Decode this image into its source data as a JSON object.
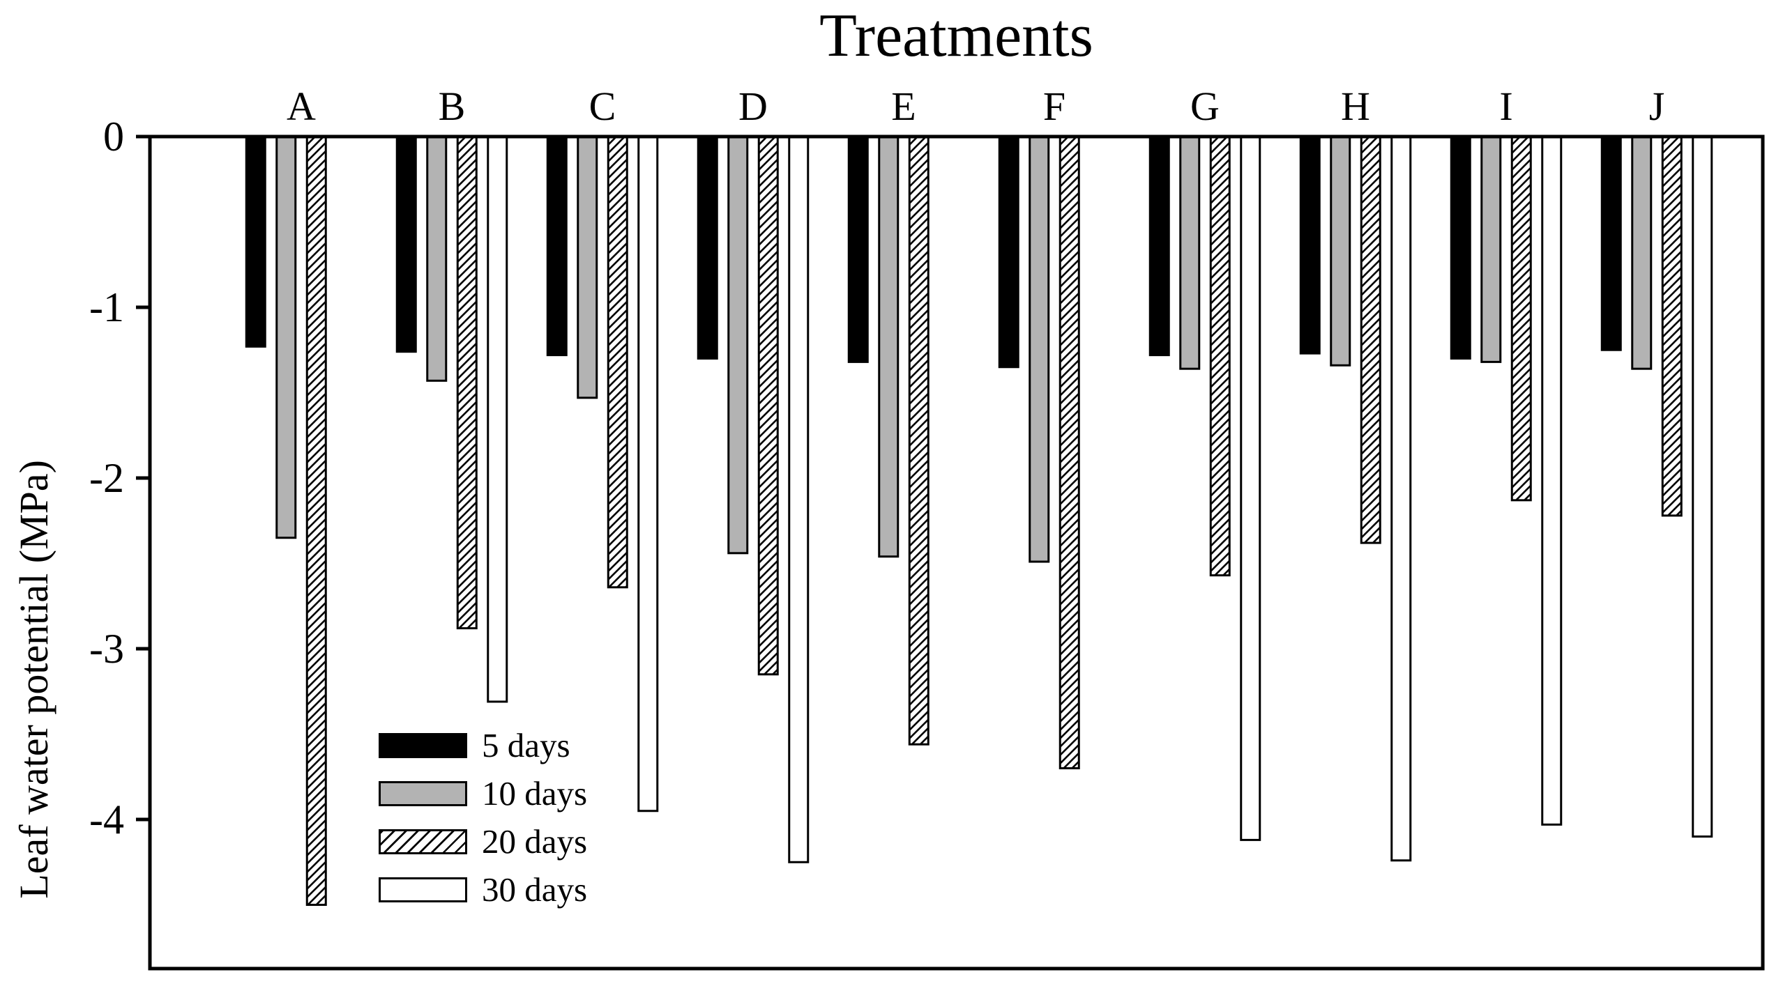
{
  "figure": {
    "background_color": "#ffffff",
    "ink_color": "#000000",
    "title": "Treatments",
    "y_axis_title": "Leaf water potential (MPa)"
  },
  "chart_data": {
    "type": "bar",
    "orientation": "vertical-downward-negative",
    "title": "Treatments",
    "xlabel": "Treatments",
    "ylabel": "Leaf water potential (MPa)",
    "categories": [
      "A",
      "B",
      "C",
      "D",
      "E",
      "F",
      "G",
      "H",
      "I",
      "J"
    ],
    "series": [
      {
        "name": "5 days",
        "style": "solid-black",
        "color": "#000000",
        "values": [
          -1.23,
          -1.26,
          -1.28,
          -1.3,
          -1.32,
          -1.35,
          -1.28,
          -1.27,
          -1.3,
          -1.25
        ]
      },
      {
        "name": "10 days",
        "style": "solid-gray",
        "color": "#b3b3b3",
        "values": [
          -2.35,
          -1.43,
          -1.53,
          -2.44,
          -2.46,
          -2.49,
          -1.36,
          -1.34,
          -1.32,
          -1.36
        ]
      },
      {
        "name": "20 days",
        "style": "diagonal-hatch",
        "color": "#ffffff",
        "values": [
          -4.5,
          -2.88,
          -2.64,
          -3.15,
          -3.56,
          -3.7,
          -2.57,
          -2.38,
          -2.13,
          -2.22
        ]
      },
      {
        "name": "30 days",
        "style": "solid-white",
        "color": "#ffffff",
        "values": [
          null,
          -3.31,
          -3.95,
          -4.25,
          null,
          null,
          -4.12,
          -4.24,
          -4.03,
          -4.1
        ]
      }
    ],
    "y_ticks": [
      0,
      -1,
      -2,
      -3,
      -4
    ],
    "y_tick_labels": [
      "0",
      "-1",
      "-2",
      "-3",
      "-4"
    ],
    "ylim": [
      0,
      -4.87
    ],
    "grid": false,
    "plot_frame": "full-box",
    "legend": {
      "position": "inside-lower-left",
      "entries": [
        "5 days",
        "10 days",
        "20 days",
        "30 days"
      ]
    }
  }
}
